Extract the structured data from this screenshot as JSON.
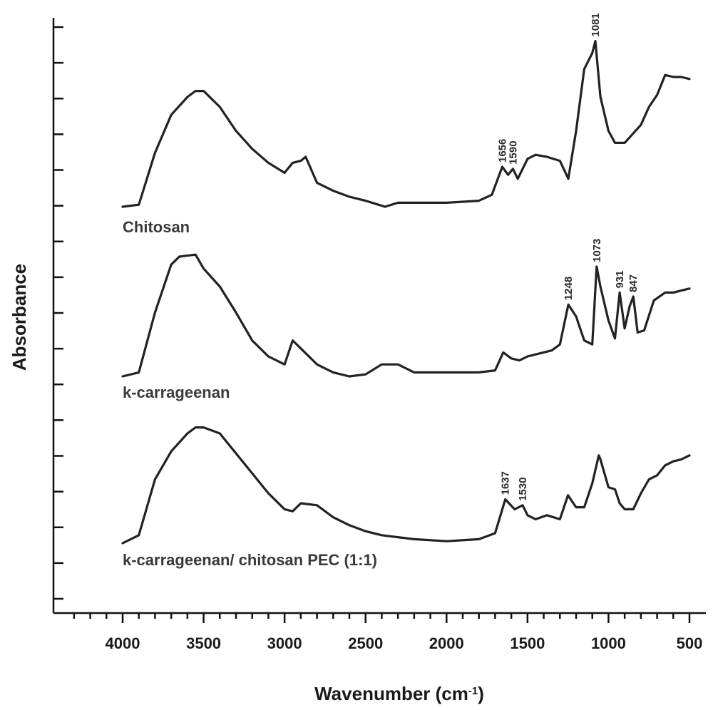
{
  "chart_data": {
    "type": "line",
    "xlabel": "Wavenumber (cm",
    "xlabel_sup": "-1",
    "xlabel_close": ")",
    "ylabel": "Absorbance",
    "xlim": [
      4000,
      500
    ],
    "x_reversed": true,
    "x_ticks": [
      "4000",
      "3500",
      "3000",
      "2500",
      "2000",
      "1500",
      "1000",
      "500"
    ],
    "y_tick_count": 17,
    "grid": false,
    "series": [
      {
        "name": "Chitosan",
        "points": [
          [
            4000,
            0.0
          ],
          [
            3900,
            0.1
          ],
          [
            3800,
            2.7
          ],
          [
            3700,
            4.6
          ],
          [
            3600,
            5.5
          ],
          [
            3550,
            5.8
          ],
          [
            3500,
            5.8
          ],
          [
            3400,
            5.0
          ],
          [
            3300,
            3.8
          ],
          [
            3200,
            2.9
          ],
          [
            3100,
            2.2
          ],
          [
            3000,
            1.7
          ],
          [
            2950,
            2.2
          ],
          [
            2900,
            2.3
          ],
          [
            2870,
            2.5
          ],
          [
            2800,
            1.2
          ],
          [
            2700,
            0.8
          ],
          [
            2600,
            0.5
          ],
          [
            2500,
            0.3
          ],
          [
            2420,
            0.1
          ],
          [
            2380,
            0.0
          ],
          [
            2300,
            0.2
          ],
          [
            2200,
            0.2
          ],
          [
            2000,
            0.2
          ],
          [
            1800,
            0.3
          ],
          [
            1720,
            0.6
          ],
          [
            1656,
            2.0
          ],
          [
            1620,
            1.6
          ],
          [
            1590,
            1.9
          ],
          [
            1560,
            1.4
          ],
          [
            1500,
            2.4
          ],
          [
            1450,
            2.6
          ],
          [
            1380,
            2.5
          ],
          [
            1300,
            2.3
          ],
          [
            1248,
            1.4
          ],
          [
            1200,
            3.8
          ],
          [
            1150,
            6.9
          ],
          [
            1100,
            7.7
          ],
          [
            1081,
            8.3
          ],
          [
            1050,
            5.5
          ],
          [
            1000,
            3.8
          ],
          [
            960,
            3.2
          ],
          [
            900,
            3.2
          ],
          [
            800,
            4.1
          ],
          [
            750,
            5.0
          ],
          [
            700,
            5.6
          ],
          [
            650,
            6.6
          ],
          [
            600,
            6.5
          ],
          [
            550,
            6.5
          ],
          [
            500,
            6.4
          ]
        ]
      },
      {
        "name": "k-carrageenan",
        "points": [
          [
            4000,
            0.0
          ],
          [
            3900,
            0.2
          ],
          [
            3800,
            3.2
          ],
          [
            3700,
            5.6
          ],
          [
            3650,
            6.0
          ],
          [
            3550,
            6.1
          ],
          [
            3500,
            5.4
          ],
          [
            3400,
            4.5
          ],
          [
            3300,
            3.2
          ],
          [
            3200,
            1.8
          ],
          [
            3100,
            1.0
          ],
          [
            3000,
            0.6
          ],
          [
            2950,
            1.8
          ],
          [
            2900,
            1.4
          ],
          [
            2800,
            0.6
          ],
          [
            2700,
            0.2
          ],
          [
            2600,
            0.0
          ],
          [
            2500,
            0.1
          ],
          [
            2400,
            0.6
          ],
          [
            2300,
            0.6
          ],
          [
            2200,
            0.2
          ],
          [
            2000,
            0.2
          ],
          [
            1800,
            0.2
          ],
          [
            1700,
            0.3
          ],
          [
            1650,
            1.2
          ],
          [
            1600,
            0.9
          ],
          [
            1550,
            0.8
          ],
          [
            1500,
            1.0
          ],
          [
            1450,
            1.1
          ],
          [
            1350,
            1.3
          ],
          [
            1300,
            1.6
          ],
          [
            1248,
            3.6
          ],
          [
            1200,
            3.0
          ],
          [
            1150,
            1.8
          ],
          [
            1100,
            1.6
          ],
          [
            1073,
            5.5
          ],
          [
            1050,
            4.5
          ],
          [
            1000,
            2.8
          ],
          [
            960,
            1.9
          ],
          [
            931,
            4.2
          ],
          [
            900,
            2.4
          ],
          [
            870,
            3.5
          ],
          [
            847,
            4.0
          ],
          [
            820,
            2.2
          ],
          [
            780,
            2.3
          ],
          [
            720,
            3.8
          ],
          [
            650,
            4.2
          ],
          [
            600,
            4.2
          ],
          [
            550,
            4.3
          ],
          [
            500,
            4.4
          ]
        ]
      },
      {
        "name": "k-carrageenan/ chitosan PEC (1:1)",
        "points": [
          [
            4000,
            0.0
          ],
          [
            3900,
            0.4
          ],
          [
            3800,
            3.2
          ],
          [
            3700,
            4.6
          ],
          [
            3600,
            5.5
          ],
          [
            3550,
            5.8
          ],
          [
            3500,
            5.8
          ],
          [
            3400,
            5.5
          ],
          [
            3300,
            4.5
          ],
          [
            3200,
            3.5
          ],
          [
            3100,
            2.5
          ],
          [
            3000,
            1.7
          ],
          [
            2950,
            1.6
          ],
          [
            2900,
            2.0
          ],
          [
            2800,
            1.9
          ],
          [
            2700,
            1.3
          ],
          [
            2600,
            0.9
          ],
          [
            2500,
            0.6
          ],
          [
            2400,
            0.4
          ],
          [
            2300,
            0.3
          ],
          [
            2200,
            0.2
          ],
          [
            2000,
            0.1
          ],
          [
            1800,
            0.2
          ],
          [
            1700,
            0.5
          ],
          [
            1637,
            2.2
          ],
          [
            1580,
            1.7
          ],
          [
            1530,
            1.9
          ],
          [
            1500,
            1.4
          ],
          [
            1450,
            1.2
          ],
          [
            1380,
            1.4
          ],
          [
            1300,
            1.2
          ],
          [
            1250,
            2.4
          ],
          [
            1200,
            1.8
          ],
          [
            1150,
            1.8
          ],
          [
            1100,
            3.0
          ],
          [
            1060,
            4.4
          ],
          [
            1050,
            4.2
          ],
          [
            1000,
            2.8
          ],
          [
            960,
            2.7
          ],
          [
            931,
            2.0
          ],
          [
            900,
            1.7
          ],
          [
            847,
            1.7
          ],
          [
            800,
            2.5
          ],
          [
            750,
            3.2
          ],
          [
            700,
            3.4
          ],
          [
            650,
            3.9
          ],
          [
            600,
            4.1
          ],
          [
            550,
            4.2
          ],
          [
            500,
            4.4
          ]
        ]
      }
    ],
    "annotations": [
      {
        "series": 0,
        "x": 1656,
        "text": "1656"
      },
      {
        "series": 0,
        "x": 1590,
        "text": "1590"
      },
      {
        "series": 0,
        "x": 1081,
        "text": "1081"
      },
      {
        "series": 1,
        "x": 1248,
        "text": "1248"
      },
      {
        "series": 1,
        "x": 1073,
        "text": "1073"
      },
      {
        "series": 1,
        "x": 931,
        "text": "931"
      },
      {
        "series": 1,
        "x": 847,
        "text": "847"
      },
      {
        "series": 2,
        "x": 1637,
        "text": "1637"
      },
      {
        "series": 2,
        "x": 1530,
        "text": "1530"
      }
    ]
  }
}
